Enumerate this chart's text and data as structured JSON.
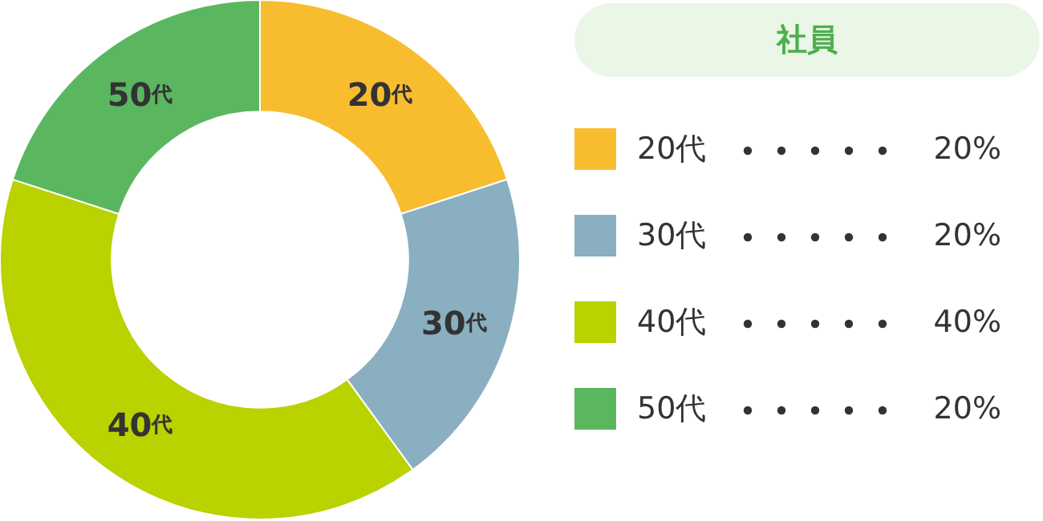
{
  "chart_data": {
    "type": "donut",
    "legend_title": "社員",
    "legend": "right",
    "categories": [
      "20代",
      "30代",
      "40代",
      "50代"
    ],
    "values": [
      20,
      20,
      40,
      20
    ],
    "value_labels": [
      "20%",
      "20%",
      "40%",
      "20%"
    ],
    "colors": [
      "#f8bd2f",
      "#8aafc0",
      "#b9d200",
      "#5bb660"
    ]
  }
}
